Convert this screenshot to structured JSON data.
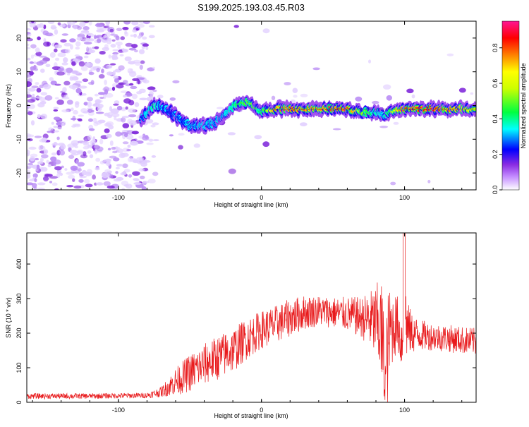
{
  "title": "S199.2025.193.03.45.R03",
  "colors": {
    "snr_line": "#e8191b",
    "noise": "#8a2be2",
    "axis": "#000000"
  },
  "chart_data": [
    {
      "type": "heatmap",
      "title": "S199.2025.193.03.45.R03",
      "xlabel": "Height of straight line (km)",
      "ylabel": "Frequency (Hz)",
      "xlim": [
        -164,
        150
      ],
      "ylim": [
        -25,
        25
      ],
      "xticks": [
        -100,
        0,
        100
      ],
      "yticks": [
        -20,
        -10,
        0,
        10,
        20
      ],
      "colorbar": {
        "label": "Normalized spectral amplitude",
        "range": [
          0,
          0.95
        ],
        "ticks": [
          0.0,
          0.2,
          0.4,
          0.6,
          0.8
        ],
        "colormap": [
          "#ffffff",
          "#9b30ff",
          "#0000ff",
          "#00ffff",
          "#00ff00",
          "#ffff00",
          "#ff8000",
          "#ff0000",
          "#ff1493"
        ]
      },
      "ridge": {
        "description_points_x": [
          -84,
          -75,
          -70,
          -60,
          -50,
          -40,
          -32,
          -25,
          -15,
          -8,
          0,
          10,
          20,
          40,
          60,
          70,
          80,
          85,
          90,
          95,
          100,
          120,
          140,
          150
        ],
        "frequency_hz": [
          -4,
          0,
          0,
          -3,
          -6,
          -6,
          -5,
          -2,
          1,
          1,
          -2,
          -1,
          -1,
          -1,
          -1,
          -2,
          -2,
          -3,
          -2,
          -1,
          -1,
          -1,
          -1,
          -1
        ],
        "amplitude": [
          0.25,
          0.45,
          0.3,
          0.25,
          0.3,
          0.35,
          0.3,
          0.35,
          0.5,
          0.55,
          0.45,
          0.8,
          0.85,
          0.8,
          0.9,
          0.6,
          0.4,
          0.35,
          0.5,
          0.7,
          0.85,
          0.9,
          0.75,
          0.6
        ]
      }
    },
    {
      "type": "line",
      "xlabel": "Height of straight line (km)",
      "ylabel": "SNR (10 * v/v)",
      "xlim": [
        -164,
        150
      ],
      "ylim": [
        0,
        490
      ],
      "xticks": [
        -100,
        0,
        100
      ],
      "yticks": [
        0,
        100,
        200,
        300,
        400
      ],
      "series": [
        {
          "envelope_x": [
            -164,
            -120,
            -80,
            -70,
            -60,
            -50,
            -40,
            -30,
            -20,
            -10,
            0,
            10,
            20,
            30,
            40,
            50,
            60,
            70,
            75,
            80,
            83,
            85,
            86,
            88,
            90,
            95,
            98,
            100,
            102,
            105,
            110,
            120,
            130,
            140,
            150
          ],
          "center": [
            18,
            18,
            20,
            30,
            60,
            85,
            110,
            130,
            150,
            185,
            210,
            225,
            245,
            260,
            265,
            260,
            255,
            245,
            240,
            230,
            215,
            150,
            40,
            150,
            210,
            230,
            170,
            270,
            215,
            200,
            195,
            190,
            185,
            180,
            175
          ],
          "amplitude": [
            8,
            8,
            8,
            15,
            40,
            55,
            60,
            65,
            65,
            60,
            55,
            55,
            55,
            50,
            45,
            45,
            50,
            60,
            80,
            110,
            150,
            180,
            30,
            170,
            120,
            80,
            90,
            200,
            80,
            60,
            45,
            40,
            40,
            40,
            40
          ]
        }
      ]
    }
  ]
}
